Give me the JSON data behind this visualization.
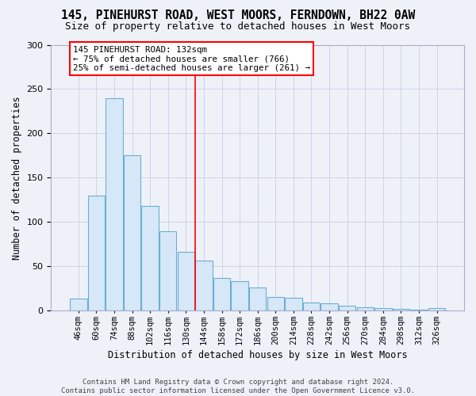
{
  "title1": "145, PINEHURST ROAD, WEST MOORS, FERNDOWN, BH22 0AW",
  "title2": "Size of property relative to detached houses in West Moors",
  "xlabel": "Distribution of detached houses by size in West Moors",
  "ylabel": "Number of detached properties",
  "categories": [
    "46sqm",
    "60sqm",
    "74sqm",
    "88sqm",
    "102sqm",
    "116sqm",
    "130sqm",
    "144sqm",
    "158sqm",
    "172sqm",
    "186sqm",
    "200sqm",
    "214sqm",
    "228sqm",
    "242sqm",
    "256sqm",
    "270sqm",
    "284sqm",
    "298sqm",
    "312sqm",
    "326sqm"
  ],
  "bar_heights": [
    13,
    130,
    240,
    175,
    118,
    89,
    66,
    56,
    37,
    33,
    26,
    15,
    14,
    9,
    8,
    5,
    4,
    3,
    2,
    1,
    3
  ],
  "bar_color": "#d6e8f7",
  "bar_edge_color": "#6aaed6",
  "vline_x": 6.5,
  "vline_color": "red",
  "annotation_line1": "145 PINEHURST ROAD: 132sqm",
  "annotation_line2": "← 75% of detached houses are smaller (766)",
  "annotation_line3": "25% of semi-detached houses are larger (261) →",
  "annotation_box_color": "white",
  "annotation_box_edge": "red",
  "ylim": [
    0,
    300
  ],
  "yticks": [
    0,
    50,
    100,
    150,
    200,
    250,
    300
  ],
  "bg_color": "#eef2f8",
  "grid_color": "#ccd3e8",
  "footer_text": "Contains HM Land Registry data © Crown copyright and database right 2024.\nContains public sector information licensed under the Open Government Licence v3.0.",
  "title1_fontsize": 10.5,
  "title2_fontsize": 9.0,
  "ylabel_fontsize": 8.5,
  "xlabel_fontsize": 8.5,
  "tick_fontsize": 8.0,
  "xtick_fontsize": 7.5,
  "ann_fontsize": 7.8,
  "footer_fontsize": 6.5
}
